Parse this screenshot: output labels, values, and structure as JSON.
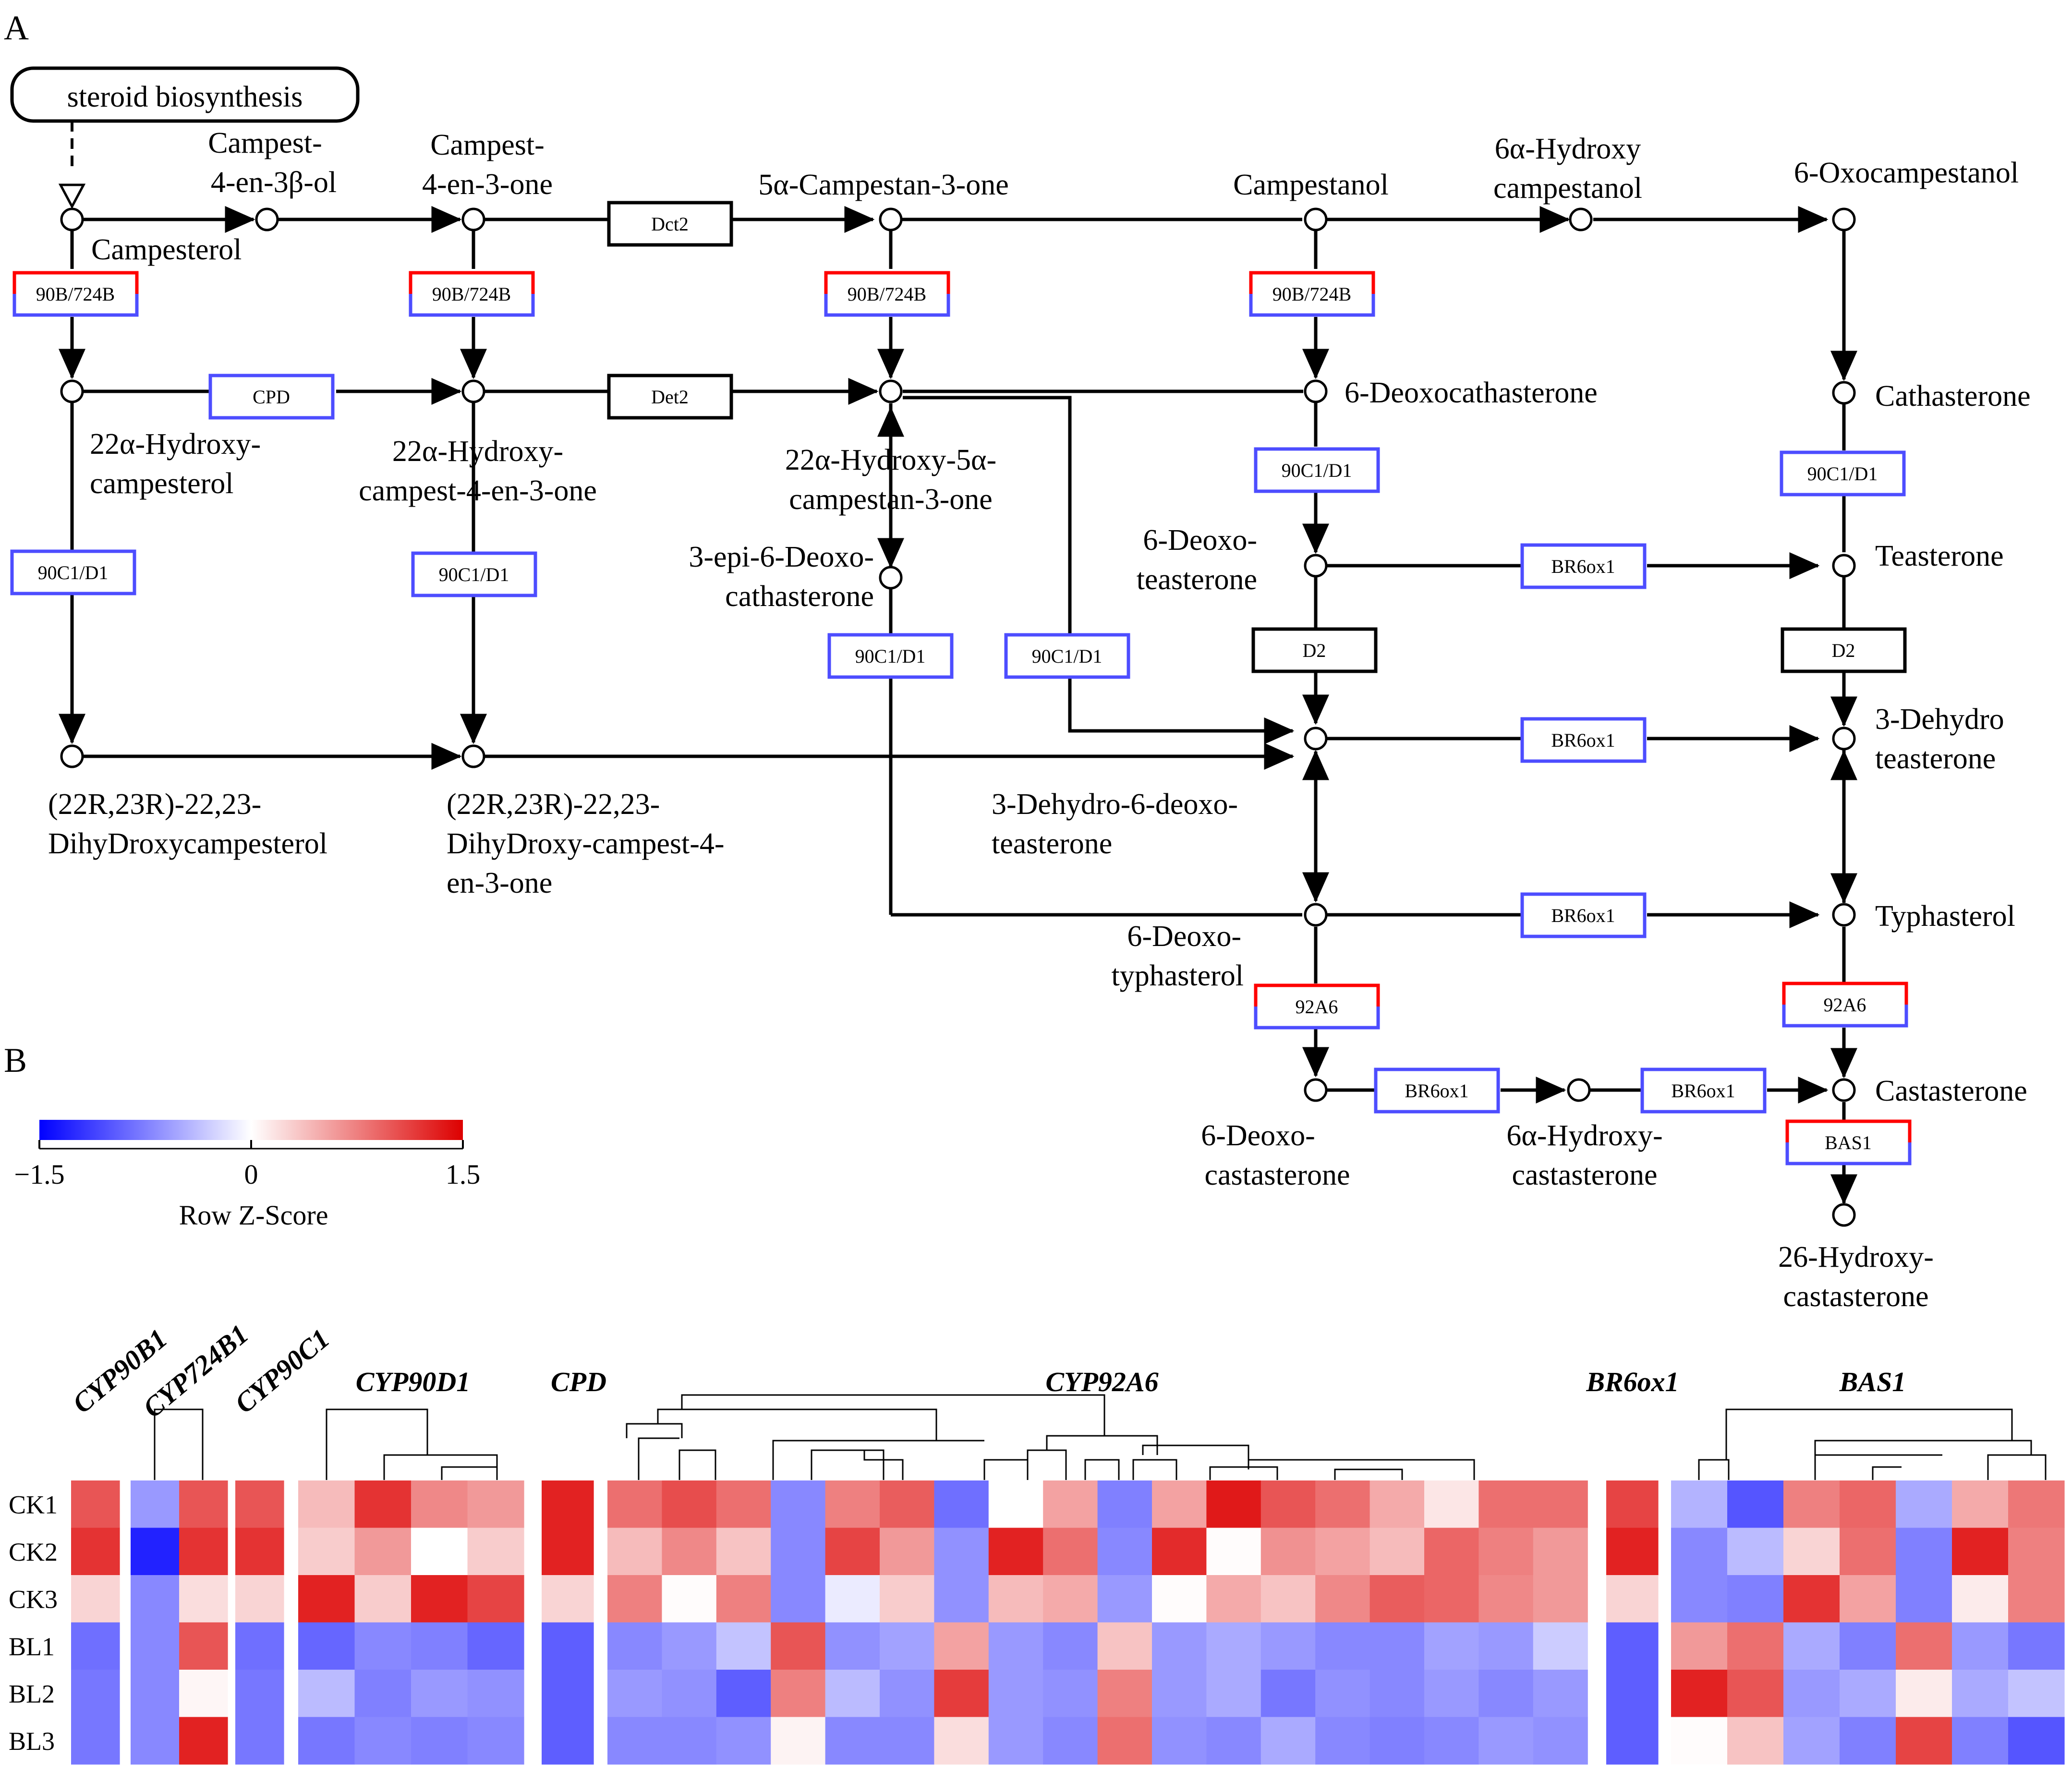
{
  "panels": {
    "a": "A",
    "b": "B"
  },
  "pathway": {
    "start": "steroid biosynthesis",
    "compounds": {
      "campesterol": "Campesterol",
      "campest_ol": [
        "Campest-",
        "4-en-3β-ol"
      ],
      "campest_one": [
        "Campest-",
        "4-en-3-one"
      ],
      "campestan_one": "5α-Campestan-3-one",
      "campestanol": "Campestanol",
      "hydroxy_campestanol": [
        "6α-Hydroxy",
        "campestanol"
      ],
      "oxocampestanol": "6-Oxocampestanol",
      "hydroxy_campesterol": [
        "22α-Hydroxy-",
        "campesterol"
      ],
      "hydroxy_campest_one": [
        "22α-Hydroxy-",
        "campest-4-en-3-one"
      ],
      "hydroxy_campestan_one": [
        "22α-Hydroxy-5α-",
        "campestan-3-one"
      ],
      "deoxocathasterone": "6-Deoxocathasterone",
      "cathasterone": "Cathasterone",
      "epi_deoxocathasterone": [
        "3-epi-6-Deoxo-",
        "cathasterone"
      ],
      "deoxoteasterone": [
        "6-Deoxo-",
        "teasterone"
      ],
      "teasterone": "Teasterone",
      "dihydroxycampesterol": [
        "(22R,23R)-22,23-",
        "DihyDroxycampesterol"
      ],
      "dihydroxy_campest_one": [
        "(22R,23R)-22,23-",
        "DihyDroxy-campest-4-",
        "en-3-one"
      ],
      "dehydro_deoxoteasterone": [
        "3-Dehydro-6-deoxo-",
        "teasterone"
      ],
      "dehydroteasterone": [
        "3-Dehydro",
        "teasterone"
      ],
      "deoxotyphasterol": [
        "6-Deoxo-",
        "typhasterol"
      ],
      "typhasterol": "Typhasterol",
      "deoxocastasterone": [
        "6-Deoxo-",
        "castasterone"
      ],
      "hydroxy_castasterone6": [
        "6α-Hydroxy-",
        "castasterone"
      ],
      "castasterone": "Castasterone",
      "hydroxycastasterone26": [
        "26-Hydroxy-",
        "castasterone"
      ]
    },
    "enzymes": {
      "e90b": "90B/724B",
      "cpd": "CPD",
      "dct2": "Dct2",
      "det2": "Det2",
      "e90c": "90C1/D1",
      "br6": "BR6ox1",
      "d2": "D2",
      "e92a6": "92A6",
      "bas1": "BAS1"
    },
    "colors": {
      "up": "#ff0000",
      "down": "#4d4dff",
      "neutral": "#000000"
    }
  },
  "legend": {
    "title": "Row Z-Score",
    "min": "−1.5",
    "mid": "0",
    "max": "1.5",
    "colors": {
      "low": "#0000ff",
      "mid": "#ffffff",
      "high": "#dd0000"
    }
  },
  "heatmap": {
    "rows": [
      "CK1",
      "CK2",
      "CK3",
      "BL1",
      "BL2",
      "BL3"
    ],
    "gene_groups": [
      {
        "name": "CYP90B1",
        "values": [
          [
            1.0
          ],
          [
            1.2
          ],
          [
            0.25
          ],
          [
            -0.85
          ],
          [
            -0.8
          ],
          [
            -0.8
          ]
        ]
      },
      {
        "name": "CYP724B1",
        "values": [
          [
            -0.6,
            1.0
          ],
          [
            -1.3,
            1.2
          ],
          [
            -0.7,
            0.2
          ],
          [
            -0.7,
            1.0
          ],
          [
            -0.7,
            0.05
          ],
          [
            -0.7,
            1.3
          ]
        ]
      },
      {
        "name": "CYP90C1",
        "values": [
          [
            1.0
          ],
          [
            1.2
          ],
          [
            0.25
          ],
          [
            -0.85
          ],
          [
            -0.8
          ],
          [
            -0.8
          ]
        ]
      },
      {
        "name": "CYP90D1",
        "values": [
          [
            0.4,
            1.2,
            0.7,
            0.6
          ],
          [
            0.3,
            0.6,
            0.0,
            0.3
          ],
          [
            1.3,
            0.3,
            1.3,
            1.1
          ],
          [
            -0.9,
            -0.7,
            -0.75,
            -0.9
          ],
          [
            -0.4,
            -0.75,
            -0.6,
            -0.65
          ],
          [
            -0.8,
            -0.7,
            -0.75,
            -0.7
          ]
        ]
      },
      {
        "name": "CPD",
        "values": [
          [
            1.3
          ],
          [
            1.3
          ],
          [
            0.25
          ],
          [
            -0.95
          ],
          [
            -0.95
          ],
          [
            -0.95
          ]
        ]
      },
      {
        "name": "CYP92A6",
        "values": [
          [
            0.85,
            1.05,
            0.85,
            -0.7,
            0.75,
            0.95,
            -0.85,
            0.0,
            0.55,
            -0.75,
            0.55,
            1.35,
            1.0,
            0.85,
            0.5,
            0.15,
            0.85,
            0.85
          ],
          [
            0.4,
            0.7,
            0.35,
            -0.7,
            1.1,
            0.6,
            -0.65,
            1.3,
            0.85,
            -0.7,
            1.25,
            0.02,
            0.65,
            0.55,
            0.4,
            0.9,
            0.75,
            0.6
          ],
          [
            0.75,
            0.02,
            0.75,
            -0.7,
            -0.12,
            0.3,
            -0.65,
            0.4,
            0.5,
            -0.6,
            0.02,
            0.5,
            0.35,
            0.7,
            0.95,
            0.9,
            0.7,
            0.6
          ],
          [
            -0.7,
            -0.6,
            -0.35,
            1.0,
            -0.65,
            -0.55,
            0.55,
            -0.6,
            -0.7,
            0.35,
            -0.6,
            -0.5,
            -0.6,
            -0.7,
            -0.7,
            -0.55,
            -0.6,
            -0.3
          ],
          [
            -0.6,
            -0.65,
            -0.95,
            0.75,
            -0.4,
            -0.65,
            1.15,
            -0.6,
            -0.65,
            0.75,
            -0.6,
            -0.5,
            -0.8,
            -0.65,
            -0.7,
            -0.6,
            -0.7,
            -0.6
          ],
          [
            -0.7,
            -0.7,
            -0.65,
            0.07,
            -0.7,
            -0.7,
            0.2,
            -0.6,
            -0.7,
            0.85,
            -0.65,
            -0.7,
            -0.5,
            -0.7,
            -0.75,
            -0.7,
            -0.6,
            -0.65
          ]
        ]
      },
      {
        "name": "BR6ox1",
        "values": [
          [
            1.1
          ],
          [
            1.3
          ],
          [
            0.25
          ],
          [
            -0.95
          ],
          [
            -0.95
          ],
          [
            -0.95
          ]
        ]
      },
      {
        "name": "BAS1",
        "values": [
          [
            -0.45,
            -1.0,
            0.75,
            0.9,
            -0.5,
            0.5,
            0.8
          ],
          [
            -0.7,
            -0.4,
            0.25,
            0.85,
            -0.75,
            1.3,
            0.75
          ],
          [
            -0.7,
            -0.75,
            1.2,
            0.55,
            -0.75,
            0.12,
            0.75
          ],
          [
            0.6,
            0.85,
            -0.5,
            -0.75,
            0.85,
            -0.6,
            -0.8
          ],
          [
            1.3,
            1.0,
            -0.6,
            -0.5,
            0.12,
            -0.5,
            -0.35
          ],
          [
            0.02,
            0.35,
            -0.55,
            -0.75,
            1.1,
            -0.75,
            -1.0
          ]
        ]
      }
    ]
  }
}
